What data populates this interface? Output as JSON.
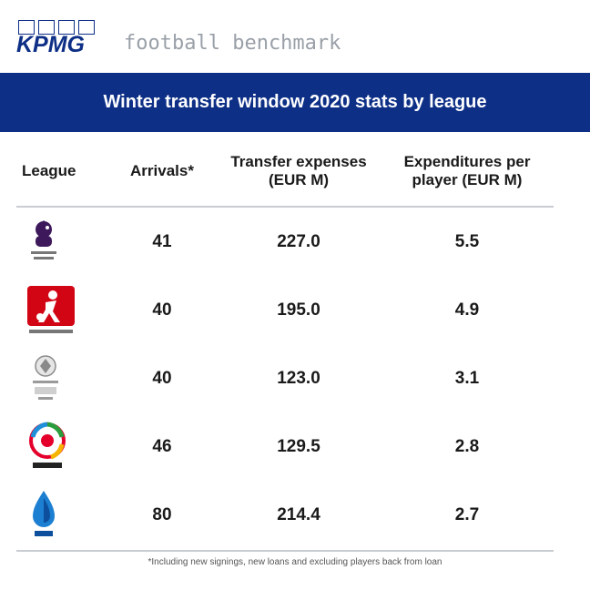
{
  "brand": {
    "logo_text": "KPMG",
    "sub_text": "football benchmark"
  },
  "banner": {
    "title": "Winter transfer window 2020 stats by league"
  },
  "table": {
    "headers": [
      "League",
      "Arrivals*",
      "Transfer expenses (EUR M)",
      "Expenditures per player (EUR M)"
    ],
    "rows": [
      {
        "league_icon": "premier-league-logo-icon",
        "arrivals": "41",
        "expenses": "227.0",
        "per_player": "5.5"
      },
      {
        "league_icon": "bundesliga-logo-icon",
        "arrivals": "40",
        "expenses": "195.0",
        "per_player": "4.9"
      },
      {
        "league_icon": "ligue-1-logo-icon",
        "arrivals": "40",
        "expenses": "123.0",
        "per_player": "3.1"
      },
      {
        "league_icon": "laliga-logo-icon",
        "arrivals": "46",
        "expenses": "129.5",
        "per_player": "2.8"
      },
      {
        "league_icon": "serie-a-logo-icon",
        "arrivals": "80",
        "expenses": "214.4",
        "per_player": "2.7"
      }
    ]
  },
  "footnote": "*Including new signings, new loans and excluding players back from loan",
  "colors": {
    "brand_blue": "#0d2f86",
    "bundesliga_red": "#d20515",
    "divider": "#c8ccd3"
  }
}
